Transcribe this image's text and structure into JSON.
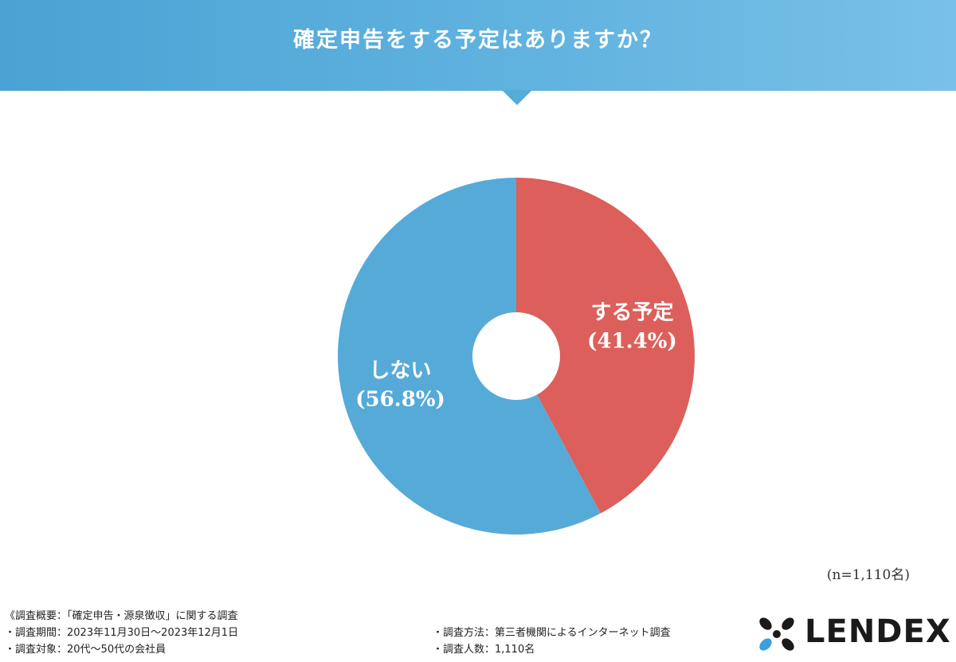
{
  "header": {
    "title": "確定申告をする予定はありますか？"
  },
  "chart_data": {
    "type": "pie",
    "title": "確定申告をする予定はありますか？",
    "slices": [
      {
        "label": "する予定",
        "value": 41.4,
        "display": "(41.4%)",
        "color": "#dc5f5b"
      },
      {
        "label": "しない",
        "value": 56.8,
        "display": "(56.8%)",
        "color": "#56aad8"
      }
    ],
    "sample_size": "(n=1,110名)"
  },
  "survey": {
    "left": [
      "《調査概要：「確定申告・源泉徴収」に関する調査",
      "・調査期間：2023年11月30日〜2023年12月1日",
      "・調査対象：20代〜50代の会社員"
    ],
    "right": [
      "・調査方法：第三者機関によるインターネット調査",
      "・調査人数：1,110名"
    ]
  },
  "logo": {
    "text": "LENDEX",
    "colors": {
      "dark": "#1a1a1a",
      "accent": "#3a9fe0"
    }
  }
}
